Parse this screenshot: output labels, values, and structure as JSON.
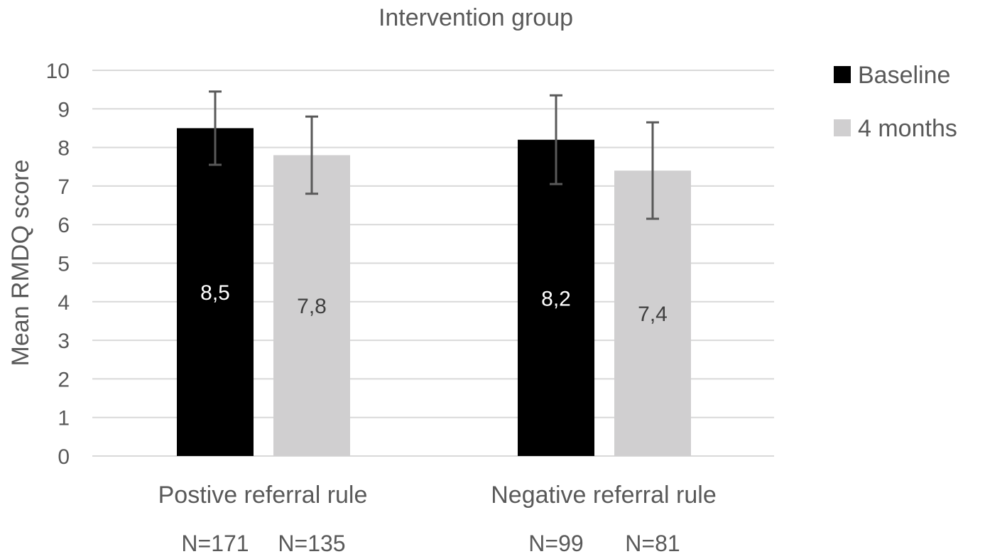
{
  "chart_data": {
    "type": "bar",
    "title": "Intervention group",
    "xlabel": "",
    "ylabel": "Mean RMDQ score",
    "ylim": [
      0,
      10
    ],
    "yticks": [
      0,
      1,
      2,
      3,
      4,
      5,
      6,
      7,
      8,
      9,
      10
    ],
    "grid": true,
    "legend_position": "right",
    "categories": [
      "Postive referral rule",
      "Negative referral rule"
    ],
    "series": [
      {
        "name": "Baseline",
        "color": "#000000",
        "label_color": "#ffffff",
        "values": [
          8.5,
          8.2
        ],
        "value_labels": [
          "8,5",
          "8,2"
        ],
        "error_low": [
          7.55,
          7.05
        ],
        "error_high": [
          9.45,
          9.35
        ],
        "n_labels": [
          "N=171",
          "N=99"
        ]
      },
      {
        "name": "4 months",
        "color": "#d0cfd0",
        "label_color": "#404040",
        "values": [
          7.8,
          7.4
        ],
        "value_labels": [
          "7,8",
          "7,4"
        ],
        "error_low": [
          6.8,
          6.15
        ],
        "error_high": [
          8.8,
          8.65
        ],
        "n_labels": [
          "N=135",
          "N=81"
        ]
      }
    ]
  }
}
